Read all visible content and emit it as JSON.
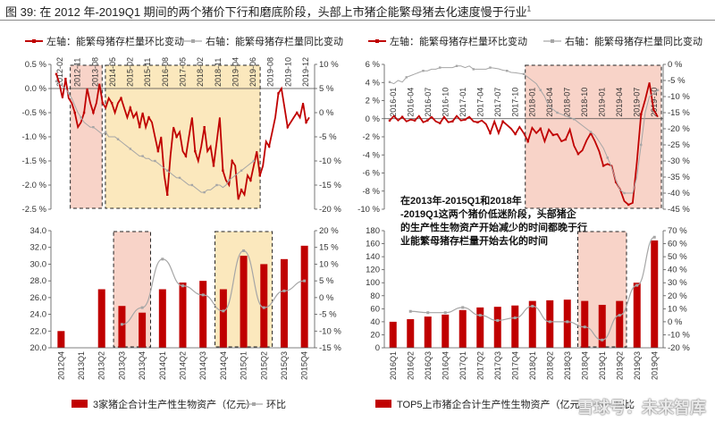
{
  "figure_title_prefix": "图 39:",
  "figure_title": "在 2012 年-2019Q1 期间的两个猪价下行和磨底阶段，头部上市猪企能繁母猪去化速度慢于行业",
  "figure_title_sup": "1",
  "annotation": "在2013年-2015Q1和2018年-2019Q1这两个猪价低迷阶段，头部猪企的生产性生物资产开始减少的时间都晚于行业能繁母猪存栏量开始去化的时间",
  "watermark": "雪球号：未来智库",
  "colors": {
    "red": "#c00000",
    "gray": "#a6a6a6",
    "pink": "#f8d3c8",
    "yellow": "#fbe8bd",
    "box": "#222222"
  },
  "chart_data": [
    {
      "id": "top-left",
      "type": "line",
      "legend": [
        "左轴：能繁母猪存栏量环比变动",
        "右轴：能繁母猪存栏量同比变动"
      ],
      "x_tick_labels": [
        "2012-02",
        "2012-11",
        "2013-08",
        "2014-05",
        "2015-02",
        "2015-11",
        "2016-08",
        "2017-05",
        "2018-02",
        "2018-11",
        "2019-04",
        "2019-06",
        "2019-08",
        "2019-10",
        "2019-12"
      ],
      "y_left": {
        "ylim": [
          -2.5,
          0.5
        ],
        "ticks": [
          "0.5 %",
          "0.0 %",
          "-0.5 %",
          "-1.0 %",
          "-1.5 %",
          "-2.0 %",
          "-2.5 %"
        ]
      },
      "y_right": {
        "ylim": [
          -20,
          10
        ],
        "ticks": [
          "10 %",
          "5 %",
          "0 %",
          "-5 %",
          "-10 %",
          "-15 %",
          "-20 %"
        ]
      },
      "series": [
        {
          "name": "能繁母猪存栏量环比变动",
          "axis": "left",
          "values": [
            0.3,
            0.1,
            -0.2,
            0.2,
            -0.2,
            -0.3,
            -0.5,
            -0.8,
            -0.7,
            -0.5,
            0.0,
            -0.3,
            -0.5,
            -0.3,
            0.1,
            -0.3,
            -0.4,
            -0.2,
            -0.3,
            -0.5,
            -0.3,
            -0.2,
            -0.4,
            -0.6,
            -0.4,
            -0.6,
            -0.5,
            -0.8,
            -0.5,
            -0.8,
            -0.6,
            -0.7,
            -1.0,
            -1.3,
            -1.0,
            -1.8,
            -2.2,
            -1.4,
            -0.8,
            -1.0,
            -0.9,
            -1.3,
            -1.4,
            -1.0,
            -0.6,
            -1.3,
            -1.5,
            -1.2,
            -0.8,
            -1.3,
            -1.2,
            -1.6,
            -1.1,
            -0.6,
            -1.7,
            -1.9,
            -2.0,
            -1.5,
            -1.6,
            -2.3,
            -2.1,
            -2.2,
            -1.8,
            -1.9,
            -1.6,
            -1.3,
            -1.8,
            -1.6,
            -1.1,
            -1.2,
            -0.9,
            -0.6,
            -0.1,
            0.0,
            -0.4,
            -0.8,
            -0.7,
            -0.6,
            -0.5,
            -0.6,
            -0.3,
            -0.7,
            -0.6
          ]
        },
        {
          "name": "能繁母猪存栏量同比变动",
          "axis": "right",
          "values": [
            6.5,
            6,
            5.5,
            5,
            4,
            3,
            1.5,
            0,
            -1,
            -2,
            -2.5,
            -3,
            -3,
            -3.5,
            -4,
            -4.5,
            -4,
            -5,
            -5,
            -5,
            -5.5,
            -6,
            -6.5,
            -7,
            -7.5,
            -8,
            -8.5,
            -9,
            -9,
            -9.5,
            -9.5,
            -10,
            -10,
            -10.5,
            -11,
            -11.5,
            -12,
            -12.5,
            -13,
            -13.5,
            -13.5,
            -14,
            -14.5,
            -15,
            -15,
            -15.5,
            -16,
            -16.5,
            -16.5,
            -16,
            -16,
            -15.5,
            -15,
            -15,
            -15.5,
            -15,
            -14,
            -13.5,
            -13,
            -12.5,
            -12,
            -11.5,
            -11,
            -10.5,
            -10
          ]
        }
      ],
      "highlight_boxes": [
        {
          "color": "pink",
          "from": "2012-11",
          "to": "2013-08"
        },
        {
          "color": "yellow",
          "from": "2014-05",
          "to": "2019-06"
        }
      ]
    },
    {
      "id": "bottom-left",
      "type": "bar",
      "legend": [
        "3家猪企合计生产性生物资产（亿元）",
        "环比"
      ],
      "categories": [
        "2012Q4",
        "2013Q1",
        "2013Q2",
        "2013Q3",
        "2013Q4",
        "2014Q1",
        "2014Q2",
        "2014Q3",
        "2014Q4",
        "2015Q1",
        "2015Q2",
        "2015Q3",
        "2015Q4"
      ],
      "y_left": {
        "ylim": [
          20,
          34
        ],
        "ticks": [
          "34.0",
          "32.0",
          "30.0",
          "28.0",
          "26.0",
          "24.0",
          "22.0",
          "20.0"
        ]
      },
      "y_right": {
        "ylim": [
          -15,
          20
        ],
        "ticks": [
          "20 %",
          "15 %",
          "10 %",
          "5 %",
          "0 %",
          "-5 %",
          "-10 %",
          "-15 %"
        ]
      },
      "series": [
        {
          "name": "3家猪企合计生产性生物资产（亿元）",
          "axis": "left",
          "values": [
            22.0,
            20.0,
            27.0,
            25.0,
            24.2,
            27.0,
            27.8,
            28.0,
            27.0,
            31.0,
            30.0,
            30.6,
            32.2
          ]
        },
        {
          "name": "环比",
          "axis": "right",
          "values": [
            null,
            null,
            null,
            -8.0,
            -3.0,
            11.5,
            3.5,
            0.8,
            -4.0,
            14.0,
            -3.0,
            2.0,
            5.0
          ]
        }
      ],
      "highlight_boxes": [
        {
          "color": "pink",
          "from": "2013Q3",
          "to": "2013Q4"
        },
        {
          "color": "yellow",
          "from": "2014Q4",
          "to": "2015Q2"
        }
      ]
    },
    {
      "id": "top-right",
      "type": "line",
      "legend": [
        "左轴：能繁母猪存栏量环比变动",
        "右轴：能繁母猪存栏量同比变动"
      ],
      "x_tick_labels": [
        "2016-01",
        "2016-04",
        "2016-07",
        "2016-10",
        "2017-01",
        "2017-04",
        "2017-07",
        "2017-10",
        "2018-01",
        "2018-04",
        "2018-07",
        "2018-10",
        "2019-01",
        "2019-04",
        "2019-07",
        "2019-10"
      ],
      "y_left": {
        "ylim": [
          -10,
          6
        ],
        "ticks": [
          "6 %",
          "4 %",
          "2 %",
          "0 %",
          "-2 %",
          "-4 %",
          "-6 %",
          "-8 %",
          "-10 %"
        ]
      },
      "y_right": {
        "ylim": [
          -45,
          0
        ],
        "ticks": [
          "0 %",
          "-5 %",
          "-10 %",
          "-15 %",
          "-20 %",
          "-25 %",
          "-30 %",
          "-35 %",
          "-40 %",
          "-45 %"
        ]
      },
      "series": [
        {
          "name": "能繁母猪存栏量环比变动",
          "axis": "left",
          "values": [
            -0.2,
            0.3,
            -0.2,
            0.2,
            -0.3,
            -0.1,
            -0.2,
            0.3,
            -0.4,
            -0.2,
            0.2,
            -0.3,
            -0.5,
            0.2,
            -0.4,
            -0.3,
            0.3,
            -0.2,
            -0.1,
            0.2,
            -0.3,
            -0.4,
            -0.2,
            -0.6,
            -1.6,
            -0.3,
            -1.6,
            -0.3,
            -0.7,
            -1.1,
            -1.7,
            -0.9,
            -1.6,
            -2.5,
            -1.0,
            -1.6,
            -1.1,
            -2.5,
            -1.2,
            -1.8,
            -1.7,
            -2.5,
            -2.3,
            -1.2,
            -3.0,
            -3.9,
            -3.5,
            -2.4,
            -1.6,
            -2.5,
            -3.6,
            -5.2,
            -5.0,
            -5.2,
            -7.0,
            -7.8,
            -9.1,
            -9.5,
            -9.3,
            -4.8,
            0.5,
            2.1,
            4.0,
            1.0,
            0.2
          ]
        },
        {
          "name": "能繁母猪存栏量同比变动",
          "axis": "right",
          "values": [
            -5.5,
            -6,
            -5,
            -5.5,
            -4,
            -3.5,
            -3,
            -2.5,
            -2,
            -2,
            -1.5,
            -1.5,
            -1,
            -1,
            -1,
            -1,
            -0.5,
            -0.5,
            -1,
            -0.5,
            -1.5,
            -1.5,
            -1.5,
            -1.5,
            -1,
            -1.2,
            -1.4,
            -1.8,
            -2,
            -2.5,
            -2.6,
            -2.8,
            -3,
            -4,
            -5,
            -6,
            -8,
            -10,
            -13,
            -14,
            -15,
            -15.5,
            -16,
            -16.5,
            -17,
            -18,
            -19,
            -20,
            -21,
            -22,
            -24,
            -26,
            -29,
            -32,
            -36,
            -39,
            -40,
            -40,
            -40,
            -35,
            -25,
            -15,
            -10,
            -9,
            -8
          ]
        }
      ],
      "highlight_boxes": [
        {
          "color": "pink",
          "from": "2018-01",
          "to": "2019-10"
        }
      ]
    },
    {
      "id": "bottom-right",
      "type": "bar",
      "legend": [
        "TOP5上市猪企合计生产性生物资产（亿元）",
        "环比"
      ],
      "categories": [
        "2016Q1",
        "2016Q2",
        "2016Q3",
        "2016Q4",
        "2017Q1",
        "2017Q2",
        "2017Q3",
        "2017Q4",
        "2018Q1",
        "2018Q2",
        "2018Q3",
        "2018Q4",
        "2019Q1",
        "2019Q2",
        "2019Q3",
        "2019Q4"
      ],
      "y_left": {
        "ylim": [
          0,
          180
        ],
        "ticks": [
          "180",
          "160",
          "140",
          "120",
          "100",
          "80",
          "60",
          "40",
          "20",
          "0"
        ]
      },
      "y_right": {
        "ylim": [
          -20,
          70
        ],
        "ticks": [
          "70 %",
          "60 %",
          "50 %",
          "40 %",
          "30 %",
          "20 %",
          "10 %",
          "0 %",
          "-10 %",
          "-20 %"
        ]
      },
      "series": [
        {
          "name": "TOP5上市猪企合计生产性生物资产（亿元）",
          "axis": "left",
          "values": [
            40,
            44,
            48,
            51,
            58,
            62,
            63,
            65,
            72,
            73,
            74,
            72,
            66,
            72,
            100,
            165
          ]
        },
        {
          "name": "环比",
          "axis": "right",
          "values": [
            null,
            8,
            7,
            7,
            11,
            5,
            1,
            3,
            12,
            0,
            0,
            -4,
            -14,
            5,
            28,
            65
          ]
        }
      ],
      "highlight_boxes": [
        {
          "color": "pink",
          "from": "2018Q4",
          "to": "2019Q2"
        }
      ]
    }
  ]
}
